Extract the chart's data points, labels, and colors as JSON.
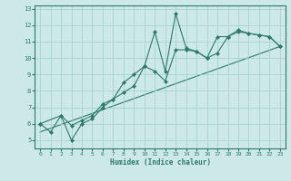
{
  "xlabel": "Humidex (Indice chaleur)",
  "xlim": [
    -0.5,
    23.5
  ],
  "ylim": [
    4.5,
    13.2
  ],
  "yticks": [
    5,
    6,
    7,
    8,
    9,
    10,
    11,
    12,
    13
  ],
  "xticks": [
    0,
    1,
    2,
    3,
    4,
    5,
    6,
    7,
    8,
    9,
    10,
    11,
    12,
    13,
    14,
    15,
    16,
    17,
    18,
    19,
    20,
    21,
    22,
    23
  ],
  "bg_color": "#cce8e8",
  "line_color": "#2d7a6a",
  "series1_x": [
    0,
    1,
    2,
    3,
    4,
    5,
    6,
    7,
    8,
    9,
    10,
    11,
    12,
    13,
    14,
    15,
    16,
    17,
    18,
    19,
    20,
    21,
    22,
    23
  ],
  "series1_y": [
    6.0,
    5.5,
    6.5,
    5.0,
    6.0,
    6.3,
    7.0,
    7.5,
    8.5,
    9.0,
    9.5,
    11.6,
    9.2,
    12.7,
    10.6,
    10.4,
    10.0,
    10.3,
    11.3,
    11.7,
    11.5,
    11.4,
    11.3,
    10.7
  ],
  "series2_x": [
    0,
    2,
    3,
    4,
    5,
    6,
    7,
    8,
    9,
    10,
    11,
    12,
    13,
    14,
    15,
    16,
    17,
    18,
    19,
    20,
    21,
    22,
    23
  ],
  "series2_y": [
    6.0,
    6.5,
    5.9,
    6.2,
    6.5,
    7.2,
    7.5,
    7.9,
    8.3,
    9.5,
    9.2,
    8.6,
    10.5,
    10.5,
    10.4,
    10.0,
    11.3,
    11.3,
    11.6,
    11.5,
    11.4,
    11.3,
    10.7
  ],
  "trend_x": [
    0,
    23
  ],
  "trend_y": [
    5.5,
    10.7
  ]
}
